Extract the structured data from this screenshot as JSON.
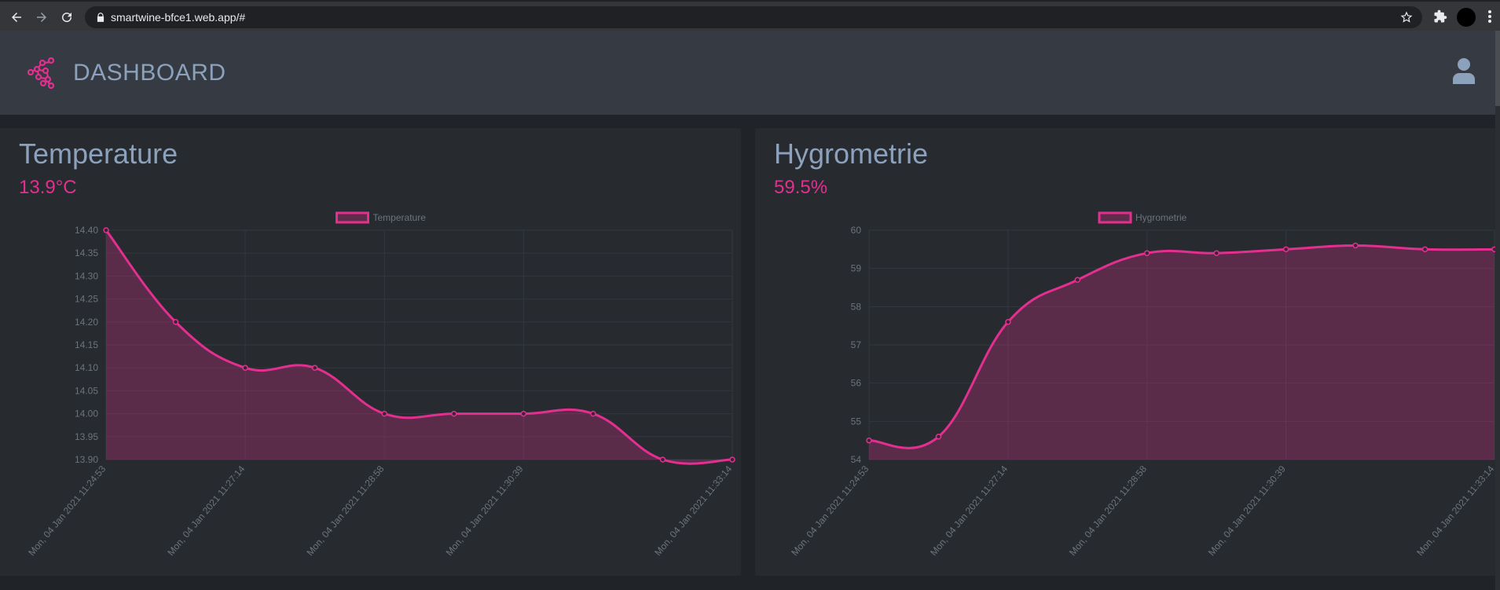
{
  "browser": {
    "url": "smartwine-bfce1.web.app/#"
  },
  "header": {
    "title": "DASHBOARD",
    "accent": "#e32f8f"
  },
  "temperature": {
    "title": "Temperature",
    "value": "13.9°C"
  },
  "hygrometrie": {
    "title": "Hygrometrie",
    "value": "59.5%"
  },
  "chart_data": [
    {
      "type": "area",
      "title": "",
      "legend": "top-center",
      "series": [
        {
          "name": "Temperature",
          "color": "#e32f8f",
          "values": [
            14.4,
            14.2,
            14.1,
            14.1,
            14.0,
            14.0,
            14.0,
            14.0,
            13.9,
            13.9
          ]
        }
      ],
      "x_tick_labels": [
        "Mon, 04 Jan 2021 11:24:53",
        "Mon, 04 Jan 2021 11:27:14",
        "Mon, 04 Jan 2021 11:28:58",
        "Mon, 04 Jan 2021 11:30:39",
        "Mon, 04 Jan 2021 11:33:14"
      ],
      "x_tick_indices": [
        0,
        2,
        4,
        6,
        9
      ],
      "y_ticks": [
        "14.40",
        "14.35",
        "14.30",
        "14.25",
        "14.20",
        "14.15",
        "14.10",
        "14.05",
        "14.00",
        "13.95",
        "13.90"
      ],
      "ylim": [
        13.9,
        14.4
      ],
      "grid": true
    },
    {
      "type": "area",
      "title": "",
      "legend": "top-center",
      "series": [
        {
          "name": "Hygrometrie",
          "color": "#e32f8f",
          "values": [
            54.5,
            54.6,
            57.6,
            58.7,
            59.4,
            59.4,
            59.5,
            59.6,
            59.5,
            59.5
          ]
        }
      ],
      "x_tick_labels": [
        "Mon, 04 Jan 2021 11:24:53",
        "Mon, 04 Jan 2021 11:27:14",
        "Mon, 04 Jan 2021 11:28:58",
        "Mon, 04 Jan 2021 11:30:39",
        "Mon, 04 Jan 2021 11:33:14"
      ],
      "x_tick_indices": [
        0,
        2,
        4,
        6,
        9
      ],
      "y_ticks": [
        "60",
        "59",
        "58",
        "57",
        "56",
        "55",
        "54"
      ],
      "ylim": [
        54,
        60
      ],
      "grid": true
    }
  ]
}
